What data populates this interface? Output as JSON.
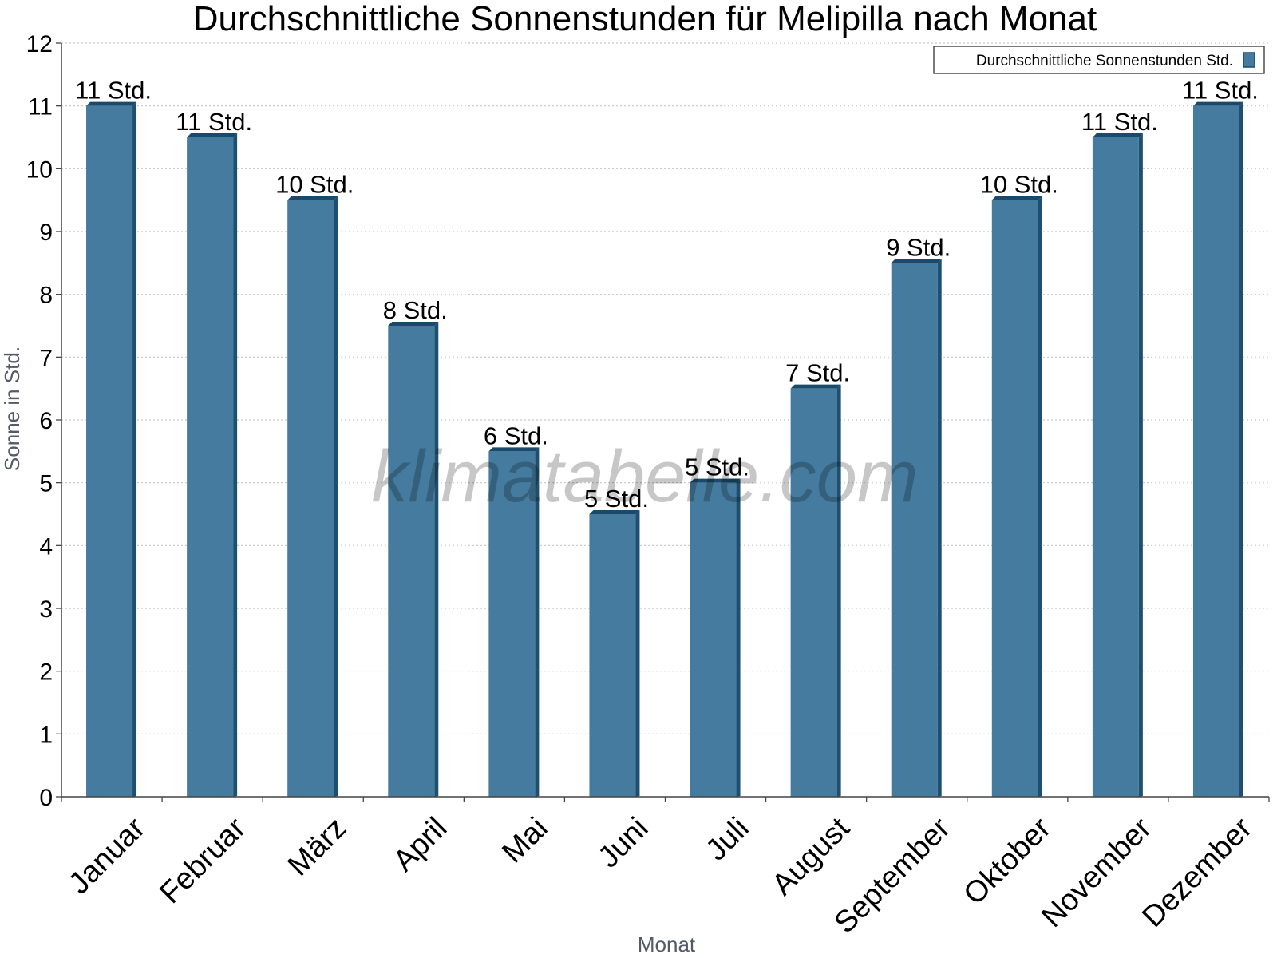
{
  "chart_data": {
    "type": "bar",
    "title": "Durchschnittliche Sonnenstunden für Melipilla nach Monat",
    "xlabel": "Monat",
    "ylabel": "Sonne in Std.",
    "ylim": [
      0,
      12
    ],
    "yticks": [
      0,
      1,
      2,
      3,
      4,
      5,
      6,
      7,
      8,
      9,
      10,
      11,
      12
    ],
    "grid": true,
    "legend_position": "top-right",
    "categories": [
      "Januar",
      "Februar",
      "März",
      "April",
      "Mai",
      "Juni",
      "Juli",
      "August",
      "September",
      "Oktober",
      "November",
      "Dezember"
    ],
    "series": [
      {
        "name": "Durchschnittliche Sonnenstunden Std.",
        "values": [
          11,
          10.5,
          9.5,
          7.5,
          5.5,
          4.5,
          5,
          6.5,
          8.5,
          9.5,
          10.5,
          11
        ],
        "labels": [
          "11 Std.",
          "11 Std.",
          "10 Std.",
          "8 Std.",
          "6 Std.",
          "5 Std.",
          "5 Std.",
          "7 Std.",
          "9 Std.",
          "10 Std.",
          "11 Std.",
          "11 Std."
        ]
      }
    ],
    "colors": {
      "bar": "#447b9f",
      "bar_side": "#1f4f70",
      "bar_top": "#1a4a6b",
      "grid": "#c8c8c8"
    },
    "watermark": "klimatabelle.com"
  }
}
